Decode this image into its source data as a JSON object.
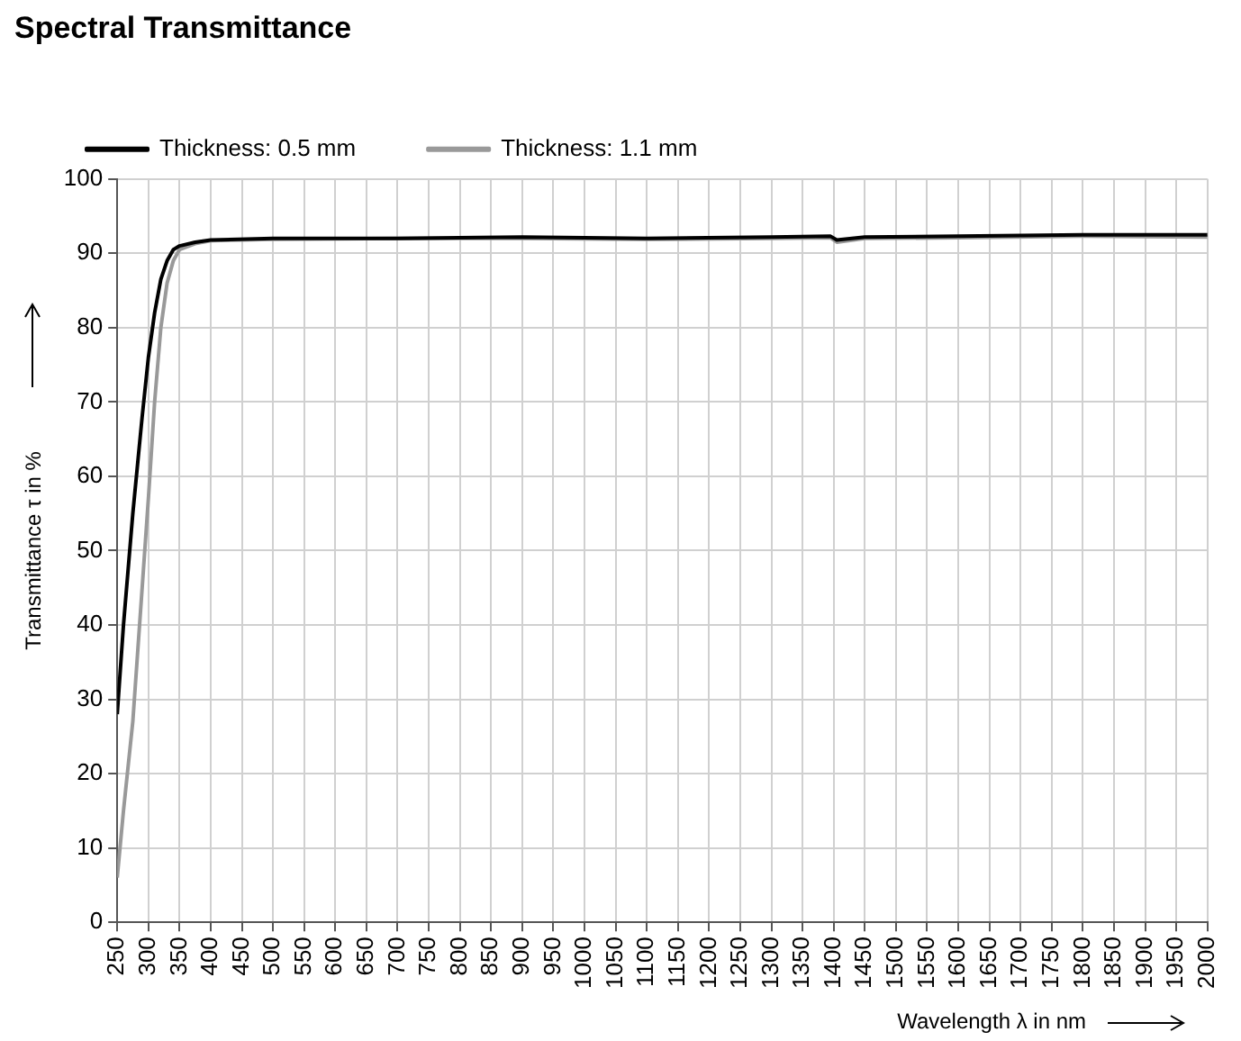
{
  "chart_data": {
    "type": "line",
    "title": "Spectral Transmittance",
    "xlabel": "Wavelength λ in nm",
    "ylabel": "Transmittance τ in %",
    "xlim": [
      250,
      2000
    ],
    "xticks": [
      250,
      300,
      350,
      400,
      450,
      500,
      550,
      600,
      650,
      700,
      750,
      800,
      850,
      900,
      950,
      1000,
      1050,
      1100,
      1150,
      1200,
      1250,
      1300,
      1350,
      1400,
      1450,
      1500,
      1550,
      1600,
      1650,
      1700,
      1750,
      1800,
      1850,
      1900,
      1950,
      2000
    ],
    "ylim": [
      0,
      100
    ],
    "yticks": [
      0,
      10,
      20,
      30,
      40,
      50,
      60,
      70,
      80,
      90,
      100
    ],
    "grid": true,
    "legend": "top",
    "marker": "none",
    "line_style": "solid",
    "series": [
      {
        "name": "Thickness: 0.5 mm",
        "color": "#000000",
        "x": [
          250,
          260,
          275,
          290,
          300,
          310,
          320,
          330,
          340,
          350,
          375,
          400,
          500,
          700,
          900,
          1100,
          1300,
          1395,
          1405,
          1450,
          1600,
          1800,
          2000
        ],
        "values": [
          28,
          40,
          55,
          68,
          76,
          82,
          86.5,
          89,
          90.5,
          91,
          91.5,
          91.8,
          92,
          92,
          92.2,
          92,
          92.2,
          92.3,
          91.8,
          92.2,
          92.3,
          92.5,
          92.5
        ]
      },
      {
        "name": "Thickness: 1.1 mm",
        "color": "#999999",
        "x": [
          250,
          260,
          275,
          290,
          300,
          310,
          320,
          330,
          340,
          350,
          375,
          400,
          500,
          700,
          900,
          1100,
          1300,
          1395,
          1405,
          1450,
          1600,
          1800,
          2000
        ],
        "values": [
          6,
          15,
          27,
          45,
          57,
          70,
          80,
          86,
          89,
          90.5,
          91.3,
          91.7,
          91.9,
          92,
          92,
          91.9,
          92,
          92.1,
          91.5,
          92,
          92.1,
          92.3,
          92.2
        ]
      }
    ]
  }
}
